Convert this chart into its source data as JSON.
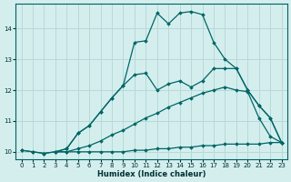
{
  "xlabel": "Humidex (Indice chaleur)",
  "bg_color": "#d4eeee",
  "grid_color": "#b8d8d8",
  "xlim": [
    -0.5,
    23.5
  ],
  "ylim": [
    9.75,
    14.8
  ],
  "xticks": [
    0,
    1,
    2,
    3,
    4,
    5,
    6,
    7,
    8,
    9,
    10,
    11,
    12,
    13,
    14,
    15,
    16,
    17,
    18,
    19,
    20,
    21,
    22,
    23
  ],
  "yticks": [
    10,
    11,
    12,
    13,
    14
  ],
  "series": [
    {
      "x": [
        0,
        1,
        2,
        3,
        4,
        5,
        6,
        7,
        8,
        9,
        10,
        11,
        12,
        13,
        14,
        15,
        16,
        17,
        18,
        19,
        20,
        21,
        22,
        23
      ],
      "y": [
        10.05,
        10.0,
        9.95,
        10.0,
        10.0,
        10.0,
        10.0,
        10.0,
        10.0,
        10.0,
        10.05,
        10.05,
        10.1,
        10.1,
        10.15,
        10.15,
        10.2,
        10.2,
        10.25,
        10.25,
        10.25,
        10.25,
        10.3,
        10.3
      ],
      "color": "#006666",
      "marker": "D",
      "markersize": 1.8,
      "linewidth": 0.9
    },
    {
      "x": [
        0,
        1,
        2,
        3,
        4,
        5,
        6,
        7,
        8,
        9,
        10,
        11,
        12,
        13,
        14,
        15,
        16,
        17,
        18,
        19,
        20,
        21,
        22,
        23
      ],
      "y": [
        10.05,
        10.0,
        9.95,
        10.0,
        10.0,
        10.1,
        10.2,
        10.35,
        10.55,
        10.7,
        10.9,
        11.1,
        11.25,
        11.45,
        11.6,
        11.75,
        11.9,
        12.0,
        12.1,
        12.0,
        11.95,
        11.1,
        10.5,
        10.3
      ],
      "color": "#006666",
      "marker": "D",
      "markersize": 1.8,
      "linewidth": 0.9
    },
    {
      "x": [
        3,
        4,
        5,
        6,
        7,
        8,
        9,
        10,
        11,
        12,
        13,
        14,
        15,
        16,
        17,
        18,
        19,
        20,
        21,
        22,
        23
      ],
      "y": [
        10.0,
        10.1,
        10.6,
        10.85,
        11.3,
        11.75,
        12.15,
        12.5,
        12.55,
        12.0,
        12.2,
        12.3,
        12.1,
        12.3,
        12.7,
        12.7,
        12.7,
        12.0,
        11.5,
        11.1,
        10.3
      ],
      "color": "#006666",
      "marker": "D",
      "markersize": 1.8,
      "linewidth": 0.9
    },
    {
      "x": [
        3,
        4,
        5,
        6,
        7,
        8,
        9,
        10,
        11,
        12,
        13,
        14,
        15,
        16,
        17,
        18,
        19,
        20,
        21,
        22,
        23
      ],
      "y": [
        10.0,
        10.1,
        10.6,
        10.85,
        11.3,
        11.75,
        12.15,
        13.55,
        13.6,
        14.5,
        14.15,
        14.5,
        14.55,
        14.45,
        13.55,
        13.0,
        12.7,
        12.0,
        11.5,
        11.1,
        10.3
      ],
      "color": "#006666",
      "marker": "D",
      "markersize": 1.8,
      "linewidth": 0.9
    }
  ]
}
